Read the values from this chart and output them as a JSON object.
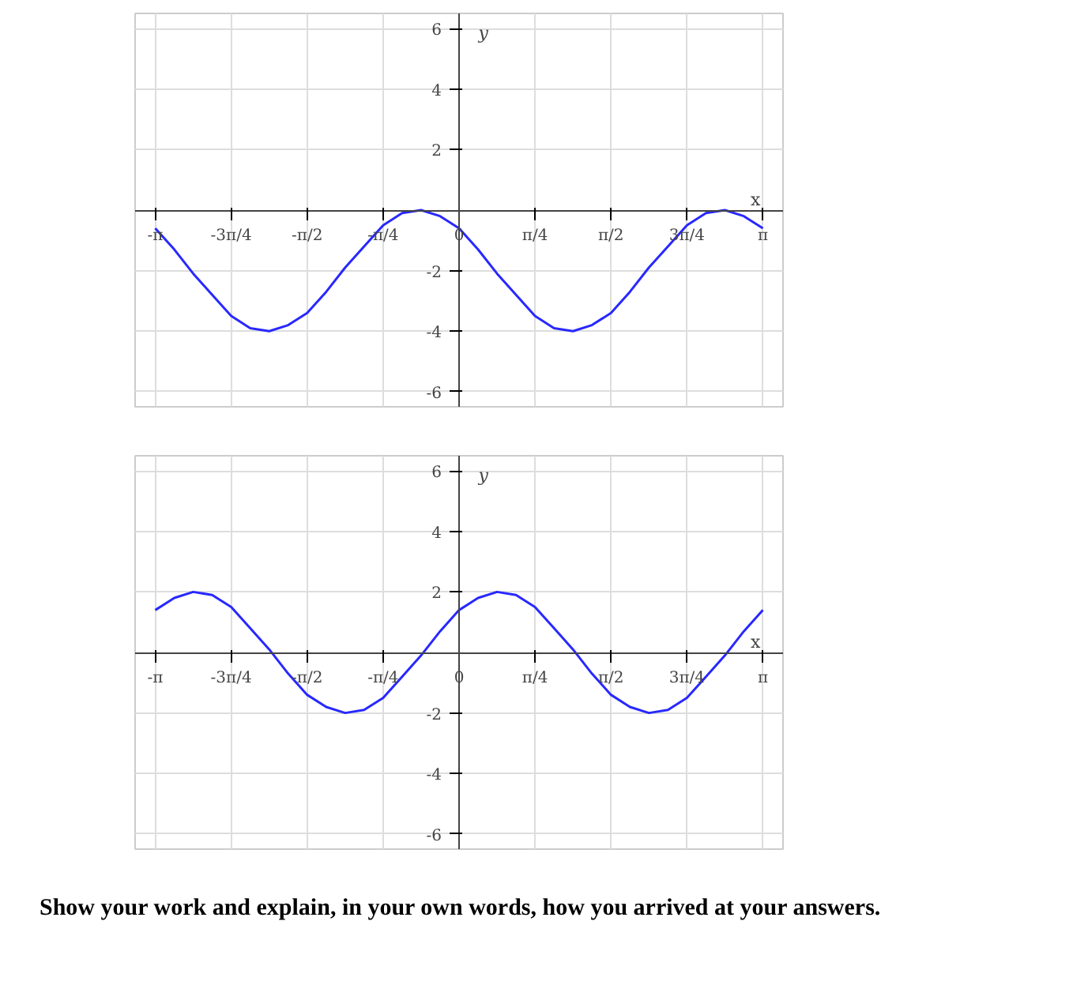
{
  "chart_data": [
    {
      "type": "line",
      "xlabel": "x",
      "ylabel": "y",
      "x": [
        -3.142,
        -2.945,
        -2.749,
        -2.553,
        -2.356,
        -2.16,
        -1.963,
        -1.767,
        -1.571,
        -1.374,
        -1.178,
        -0.982,
        -0.785,
        -0.589,
        -0.393,
        -0.196,
        0,
        0.196,
        0.393,
        0.589,
        0.785,
        0.982,
        1.178,
        1.374,
        1.571,
        1.767,
        1.963,
        2.16,
        2.356,
        2.553,
        2.749,
        2.945,
        3.142
      ],
      "series": [
        {
          "color": "#2828ff",
          "values": [
            -0.6,
            -1.3,
            -2.1,
            -2.8,
            -3.5,
            -3.9,
            -4.0,
            -3.8,
            -3.4,
            -2.7,
            -1.9,
            -1.2,
            -0.5,
            -0.1,
            0.0,
            -0.2,
            -0.6,
            -1.3,
            -2.1,
            -2.8,
            -3.5,
            -3.9,
            -4.0,
            -3.8,
            -3.4,
            -2.7,
            -1.9,
            -1.2,
            -0.5,
            -0.1,
            0.0,
            -0.2,
            -0.6
          ]
        }
      ],
      "xlim": [
        -3.35,
        3.35
      ],
      "ylim": [
        -6.5,
        6.5
      ],
      "xticks": [
        {
          "value": -3.142,
          "label": "-π"
        },
        {
          "value": -2.356,
          "label": "-3π/4"
        },
        {
          "value": -1.571,
          "label": "-π/2"
        },
        {
          "value": -0.785,
          "label": "-π/4"
        },
        {
          "value": 0,
          "label": "0"
        },
        {
          "value": 0.785,
          "label": "π/4"
        },
        {
          "value": 1.571,
          "label": "π/2"
        },
        {
          "value": 2.356,
          "label": "3π/4"
        },
        {
          "value": 3.142,
          "label": "π"
        }
      ],
      "yticks": [
        -6,
        -4,
        -2,
        2,
        4,
        6
      ],
      "grid": true,
      "line_style": "solid",
      "marker": "none"
    },
    {
      "type": "line",
      "xlabel": "x",
      "ylabel": "y",
      "x": [
        -3.142,
        -2.945,
        -2.749,
        -2.553,
        -2.356,
        -2.16,
        -1.963,
        -1.767,
        -1.571,
        -1.374,
        -1.178,
        -0.982,
        -0.785,
        -0.589,
        -0.393,
        -0.196,
        0,
        0.196,
        0.393,
        0.589,
        0.785,
        0.982,
        1.178,
        1.374,
        1.571,
        1.767,
        1.963,
        2.16,
        2.356,
        2.553,
        2.749,
        2.945,
        3.142
      ],
      "series": [
        {
          "color": "#2828ff",
          "values": [
            1.4,
            1.8,
            2.0,
            1.9,
            1.5,
            0.8,
            0.1,
            -0.7,
            -1.4,
            -1.8,
            -2.0,
            -1.9,
            -1.5,
            -0.8,
            -0.1,
            0.7,
            1.4,
            1.8,
            2.0,
            1.9,
            1.5,
            0.8,
            0.1,
            -0.7,
            -1.4,
            -1.8,
            -2.0,
            -1.9,
            -1.5,
            -0.8,
            -0.1,
            0.7,
            1.4
          ]
        }
      ],
      "xlim": [
        -3.35,
        3.35
      ],
      "ylim": [
        -6.5,
        6.5
      ],
      "xticks": [
        {
          "value": -3.142,
          "label": "-π"
        },
        {
          "value": -2.356,
          "label": "-3π/4"
        },
        {
          "value": -1.571,
          "label": "-π/2"
        },
        {
          "value": -0.785,
          "label": "-π/4"
        },
        {
          "value": 0,
          "label": "0"
        },
        {
          "value": 0.785,
          "label": "π/4"
        },
        {
          "value": 1.571,
          "label": "π/2"
        },
        {
          "value": 2.356,
          "label": "3π/4"
        },
        {
          "value": 3.142,
          "label": "π"
        }
      ],
      "yticks": [
        -6,
        -4,
        -2,
        2,
        4,
        6
      ],
      "grid": true,
      "line_style": "solid",
      "marker": "none",
      "annotations": [
        "Show your work and explain, in your own words, how you arrived at your answers."
      ]
    }
  ]
}
